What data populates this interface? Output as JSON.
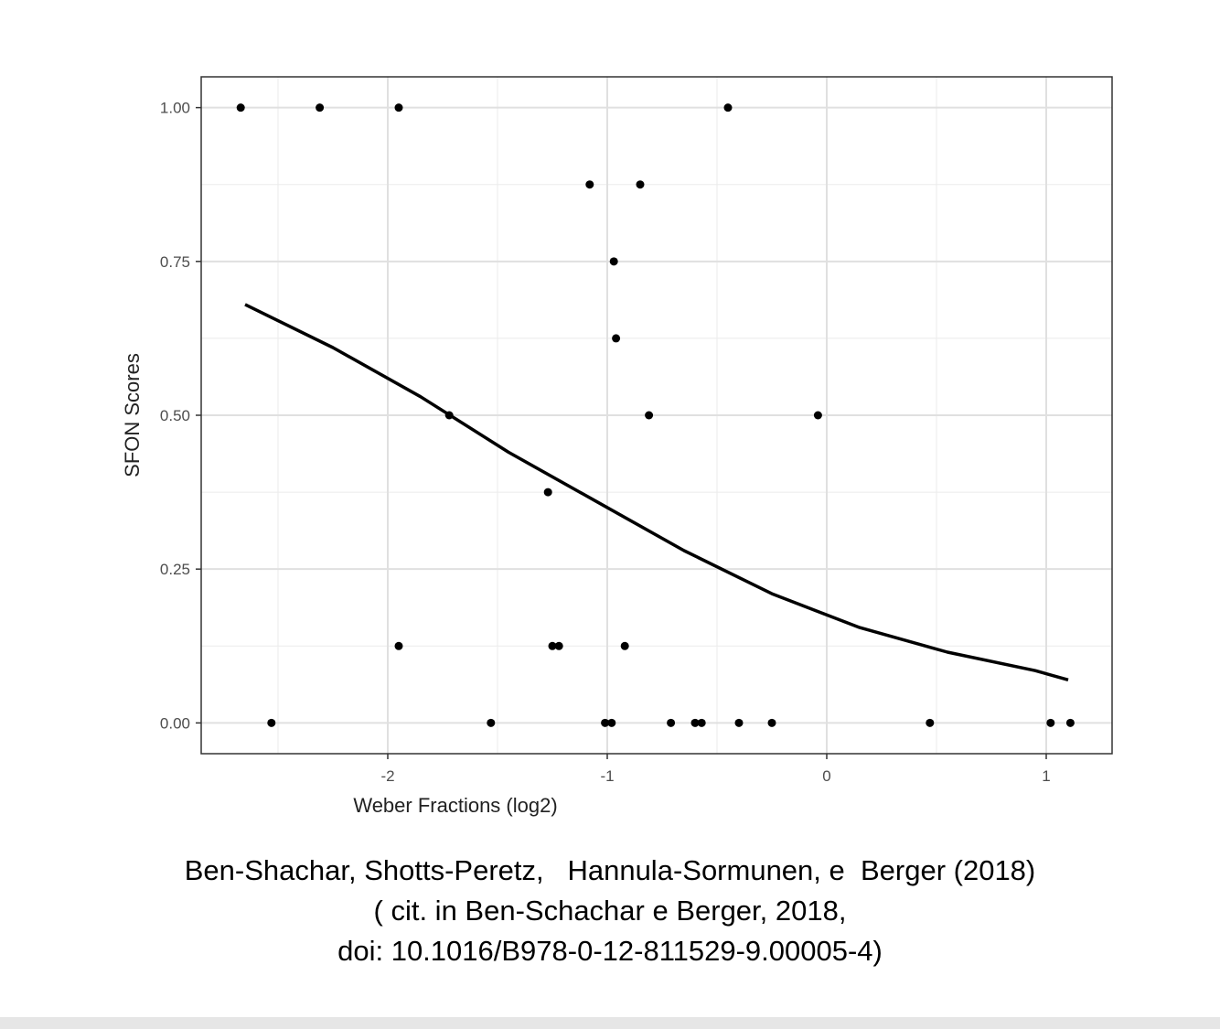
{
  "chart_data": {
    "type": "scatter",
    "xlabel": "Weber Fractions (log2)",
    "ylabel": "SFON Scores",
    "xlim": [
      -2.85,
      1.3
    ],
    "ylim": [
      -0.05,
      1.05
    ],
    "xticks": [
      -2,
      -1,
      0,
      1
    ],
    "xtick_labels": [
      "-2",
      "-1",
      "0",
      "1"
    ],
    "yticks": [
      0,
      0.25,
      0.5,
      0.75,
      1.0
    ],
    "ytick_labels": [
      "0.00",
      "0.25",
      "0.50",
      "0.75",
      "1.00"
    ],
    "grid": true,
    "legend": "none",
    "points": {
      "x": [
        -2.67,
        -2.31,
        -1.95,
        -0.45,
        -1.08,
        -0.85,
        -0.97,
        -0.96,
        -1.72,
        -0.81,
        -0.04,
        -1.27,
        -1.95,
        -1.25,
        -1.22,
        -0.92,
        -2.53,
        -1.53,
        -1.01,
        -0.98,
        -0.71,
        -0.6,
        -0.57,
        -0.4,
        -0.25,
        0.47,
        1.02,
        1.11
      ],
      "y": [
        1.0,
        1.0,
        1.0,
        1.0,
        0.875,
        0.875,
        0.75,
        0.625,
        0.5,
        0.5,
        0.5,
        0.375,
        0.125,
        0.125,
        0.125,
        0.125,
        0.0,
        0.0,
        0.0,
        0.0,
        0.0,
        0.0,
        0.0,
        0.0,
        0.0,
        0.0,
        0.0,
        0.0
      ]
    },
    "fit_line": {
      "x": [
        -2.65,
        -2.25,
        -1.85,
        -1.45,
        -1.05,
        -0.65,
        -0.25,
        0.15,
        0.55,
        0.95,
        1.1
      ],
      "y": [
        0.68,
        0.61,
        0.53,
        0.44,
        0.36,
        0.28,
        0.21,
        0.155,
        0.115,
        0.085,
        0.07
      ]
    },
    "colors": {
      "points": "#000000",
      "line": "#000000",
      "grid": "#ebebeb",
      "panel_border": "#333333"
    }
  },
  "caption": {
    "line1": "Ben-Shachar, Shotts-Peretz,   Hannula-Sormunen, e  Berger (2018)",
    "line2": "( cit. in Ben-Schachar e Berger, 2018,",
    "line3": "doi: 10.1016/B978-0-12-811529-9.00005-4)"
  }
}
